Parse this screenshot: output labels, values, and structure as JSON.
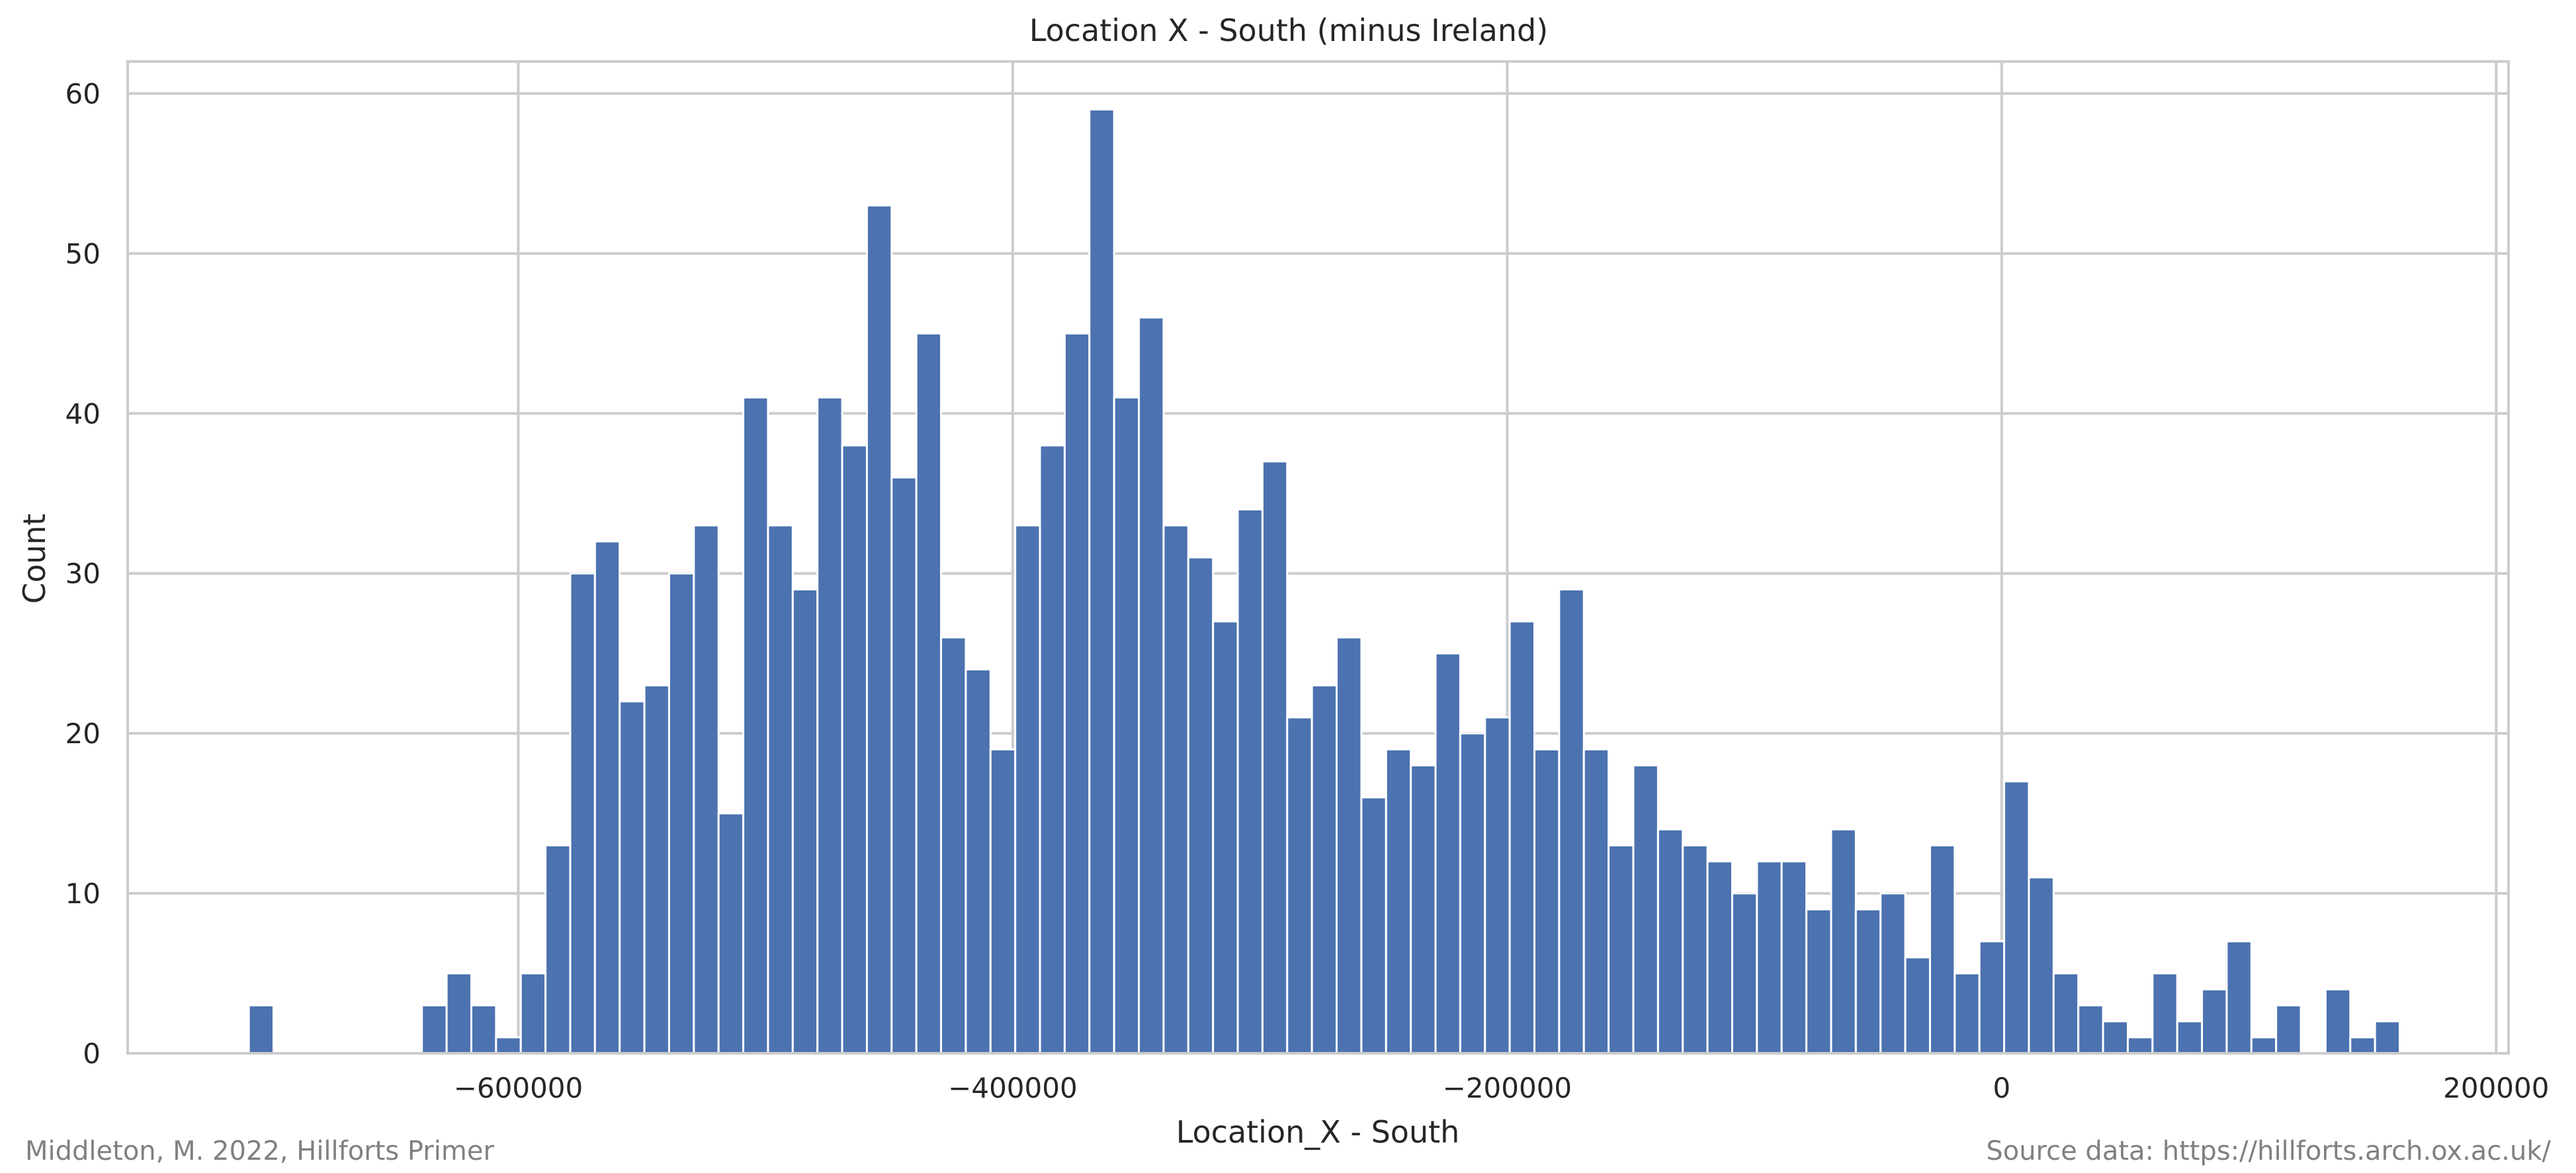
{
  "chart_data": {
    "type": "bar",
    "title": "Location X - South (minus Ireland)",
    "xlabel": "Location_X - South",
    "ylabel": "Count",
    "xlim": [
      -758000,
      205000
    ],
    "ylim": [
      0,
      62
    ],
    "xticks": [
      -600000,
      -400000,
      -200000,
      0,
      200000
    ],
    "xtick_labels": [
      "−600000",
      "−400000",
      "−200000",
      "0",
      "200000"
    ],
    "yticks": [
      0,
      10,
      20,
      30,
      40,
      50,
      60
    ],
    "ytick_labels": [
      "0",
      "10",
      "20",
      "30",
      "40",
      "50",
      "60"
    ],
    "grid": true,
    "bar_color": "#4c72b0",
    "grid_color": "#cccccc",
    "bin_start": -709000,
    "bin_width": 10000,
    "values": [
      3,
      0,
      0,
      0,
      0,
      0,
      0,
      3,
      5,
      3,
      1,
      5,
      13,
      30,
      32,
      22,
      23,
      30,
      33,
      15,
      41,
      33,
      29,
      41,
      38,
      53,
      36,
      45,
      26,
      24,
      19,
      33,
      38,
      45,
      59,
      41,
      46,
      33,
      31,
      27,
      34,
      37,
      21,
      23,
      26,
      16,
      19,
      18,
      25,
      20,
      21,
      27,
      19,
      29,
      19,
      13,
      18,
      14,
      13,
      12,
      10,
      12,
      12,
      9,
      14,
      9,
      10,
      6,
      13,
      5,
      7,
      17,
      11,
      5,
      3,
      2,
      1,
      5,
      2,
      4,
      7,
      1,
      3,
      0,
      4,
      1,
      2
    ]
  },
  "credits": {
    "left": "Middleton, M. 2022, Hillforts Primer",
    "right": "Source data: https://hillforts.arch.ox.ac.uk/"
  }
}
